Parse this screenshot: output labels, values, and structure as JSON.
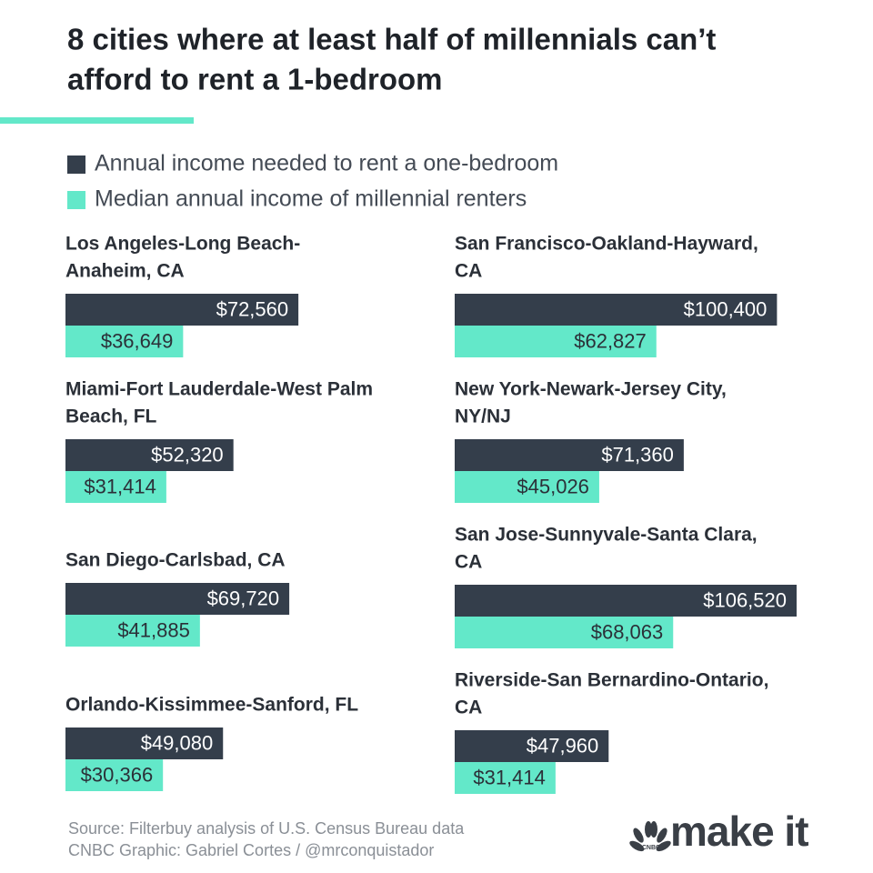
{
  "title": [
    "8 cities where at least half of millennials can’t",
    "afford to rent a 1-bedroom"
  ],
  "legend": [
    {
      "name": "Annual income needed to rent a one-bedroom",
      "color": "#343e4b"
    },
    {
      "name": "Median annual income of millennial renters",
      "color": "#63e8c9"
    }
  ],
  "chart_data": [
    {
      "type": "bar",
      "title": [
        "Los Angeles-Long Beach-",
        "Anaheim, CA"
      ],
      "values": [
        72560,
        36649
      ],
      "value_labels": [
        "$72,560",
        "$36,649"
      ]
    },
    {
      "type": "bar",
      "title": [
        "San Francisco-Oakland-Hayward,",
        "CA"
      ],
      "values": [
        100400,
        62827
      ],
      "value_labels": [
        "$100,400",
        "$62,827"
      ]
    },
    {
      "type": "bar",
      "title": [
        "Miami-Fort Lauderdale-West Palm",
        "Beach, FL"
      ],
      "values": [
        52320,
        31414
      ],
      "value_labels": [
        "$52,320",
        "$31,414"
      ]
    },
    {
      "type": "bar",
      "title": [
        "New York-Newark-Jersey City,",
        "NY/NJ"
      ],
      "values": [
        71360,
        45026
      ],
      "value_labels": [
        "$71,360",
        "$45,026"
      ]
    },
    {
      "type": "bar",
      "title": [
        "San Diego-Carlsbad, CA"
      ],
      "values": [
        69720,
        41885
      ],
      "value_labels": [
        "$69,720",
        "$41,885"
      ]
    },
    {
      "type": "bar",
      "title": [
        "San Jose-Sunnyvale-Santa Clara,",
        "CA"
      ],
      "values": [
        106520,
        68063
      ],
      "value_labels": [
        "$106,520",
        "$68,063"
      ]
    },
    {
      "type": "bar",
      "title": [
        "Orlando-Kissimmee-Sanford, FL"
      ],
      "values": [
        49080,
        30366
      ],
      "value_labels": [
        "$49,080",
        "$30,366"
      ]
    },
    {
      "type": "bar",
      "title": [
        "Riverside-San Bernardino-Ontario,",
        "CA"
      ],
      "values": [
        47960,
        31414
      ],
      "value_labels": [
        "$47,960",
        "$31,414"
      ]
    }
  ],
  "source": [
    "Source: Filterbuy analysis of U.S. Census Bureau data",
    "CNBC Graphic: Gabriel Cortes / @mrconquistador"
  ],
  "logo": {
    "brand": "CNBC",
    "text": "make it"
  }
}
